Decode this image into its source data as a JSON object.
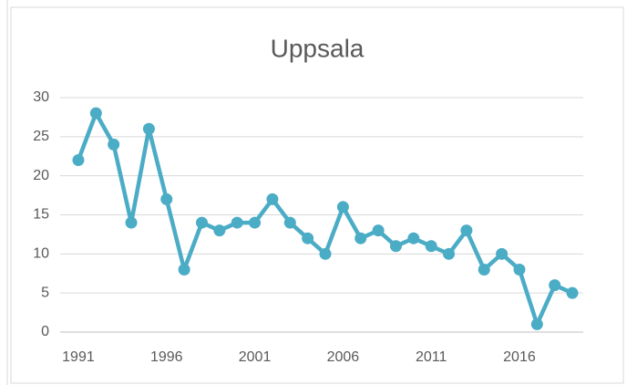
{
  "chart_data": {
    "type": "line",
    "title": "Uppsala",
    "x": [
      1991,
      1992,
      1993,
      1994,
      1995,
      1996,
      1997,
      1998,
      1999,
      2000,
      2001,
      2002,
      2003,
      2004,
      2005,
      2006,
      2007,
      2008,
      2009,
      2010,
      2011,
      2012,
      2013,
      2014,
      2015,
      2016,
      2017,
      2018,
      2019
    ],
    "series": [
      {
        "name": "Uppsala",
        "color": "#4bacc6",
        "values": [
          22,
          28,
          24,
          14,
          26,
          17,
          8,
          14,
          13,
          14,
          14,
          17,
          14,
          12,
          10,
          16,
          12,
          13,
          11,
          12,
          11,
          10,
          13,
          8,
          10,
          8,
          1,
          6,
          5
        ]
      }
    ],
    "xlim": [
      1990,
      2020
    ],
    "xticks": [
      1991,
      1996,
      2001,
      2006,
      2011,
      2016
    ],
    "ylim": [
      0,
      30
    ],
    "yticks": [
      0,
      5,
      10,
      15,
      20,
      25,
      30
    ],
    "grid": true
  }
}
